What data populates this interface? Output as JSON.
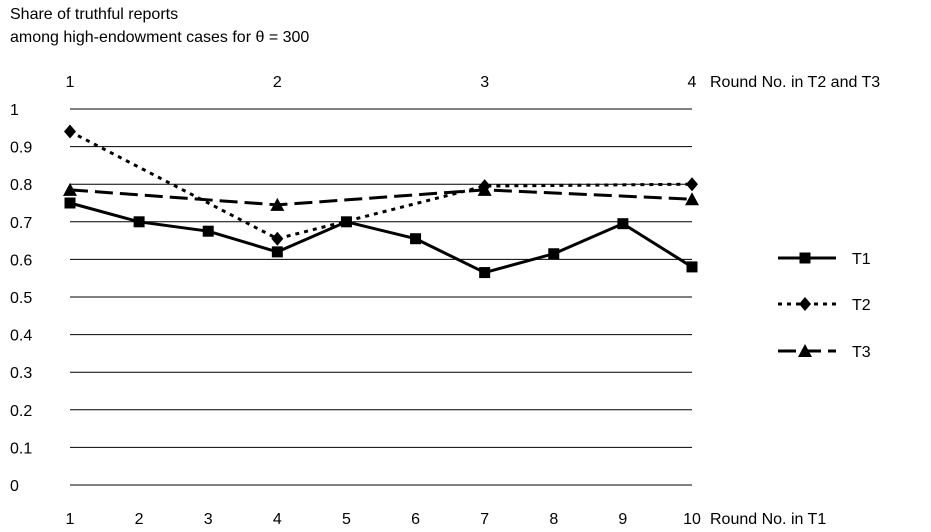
{
  "chart_data": {
    "type": "line",
    "title_line1": "Share of truthful reports",
    "title_line2": "among high-endowment cases for θ = 300",
    "xlabel_bottom": "Round No. in T1",
    "xlabel_top": "Round No. in T2 and T3",
    "x_bottom": [
      1,
      2,
      3,
      4,
      5,
      6,
      7,
      8,
      9,
      10
    ],
    "x_top": [
      1,
      2,
      3,
      4
    ],
    "yticks": [
      "0",
      "0.1",
      "0.2",
      "0.3",
      "0.4",
      "0.5",
      "0.6",
      "0.7",
      "0.8",
      "0.9",
      "1"
    ],
    "ylim": [
      0,
      1
    ],
    "grid": "horizontal",
    "legend_position": "right",
    "series": [
      {
        "name": "T1",
        "axis": "bottom",
        "x": [
          1,
          2,
          3,
          4,
          5,
          6,
          7,
          8,
          9,
          10
        ],
        "values": [
          0.75,
          0.7,
          0.675,
          0.62,
          0.7,
          0.655,
          0.565,
          0.615,
          0.695,
          0.58
        ],
        "marker": "square",
        "line": "solid"
      },
      {
        "name": "T2",
        "axis": "top",
        "x": [
          1,
          2,
          3,
          4
        ],
        "values": [
          0.94,
          0.655,
          0.795,
          0.8
        ],
        "marker": "diamond",
        "line": "dotted"
      },
      {
        "name": "T3",
        "axis": "top",
        "x": [
          1,
          2,
          3,
          4
        ],
        "values": [
          0.785,
          0.745,
          0.785,
          0.76
        ],
        "marker": "triangle",
        "line": "dashed"
      }
    ]
  }
}
